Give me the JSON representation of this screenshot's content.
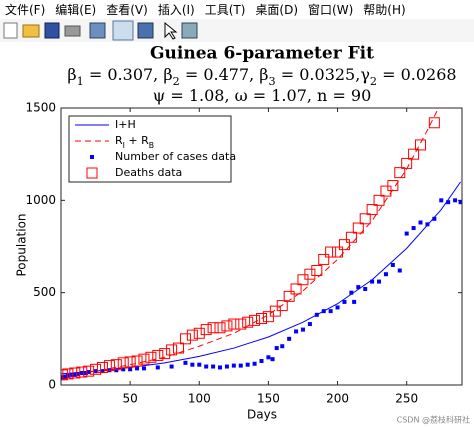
{
  "menu": [
    "文件(F)",
    "编辑(E)",
    "查看(V)",
    "插入(I)",
    "工具(T)",
    "桌面(D)",
    "窗口(W)",
    "帮助(H)"
  ],
  "watermark": "CSDN @荔枝科研社",
  "chart_data": {
    "type": "line",
    "title": "Guinea 6-parameter Fit",
    "subtitle": [
      "β_1 = 0.307, β_2 = 0.477, β_3 = 0.0325,γ_2 = 0.0268",
      "ψ = 1.08, ω = 1.07, n = 90"
    ],
    "x_label": "Days",
    "y_label": "Population",
    "xlim": [
      0,
      290
    ],
    "ylim": [
      0,
      1500
    ],
    "xticks": [
      50,
      100,
      150,
      200,
      250
    ],
    "yticks": [
      0,
      500,
      1000,
      1500
    ],
    "legend": "upper left",
    "series": [
      {
        "name": "I+H",
        "color": "#0000ff",
        "style": "solid",
        "x": [
          0,
          25,
          50,
          75,
          100,
          125,
          150,
          175,
          200,
          225,
          250,
          275,
          289
        ],
        "values": [
          60,
          75,
          95,
          120,
          155,
          200,
          260,
          340,
          440,
          570,
          740,
          950,
          1100
        ]
      },
      {
        "name": "R_I + R_B",
        "color": "#ff0000",
        "style": "dashed",
        "x": [
          0,
          25,
          50,
          75,
          100,
          125,
          150,
          175,
          200,
          225,
          250,
          265,
          273
        ],
        "values": [
          50,
          75,
          110,
          150,
          210,
          280,
          380,
          510,
          680,
          890,
          1170,
          1380,
          1500
        ]
      },
      {
        "name": "Number of cases data",
        "color": "#0000ff",
        "style": "filled-squares",
        "x": [
          1,
          3,
          5,
          8,
          10,
          12,
          15,
          18,
          20,
          25,
          30,
          35,
          40,
          45,
          50,
          55,
          60,
          70,
          80,
          90,
          95,
          100,
          105,
          110,
          115,
          120,
          125,
          130,
          135,
          140,
          145,
          150,
          153,
          156,
          160,
          165,
          170,
          175,
          180,
          185,
          190,
          195,
          200,
          205,
          210,
          212,
          215,
          220,
          225,
          230,
          235,
          240,
          245,
          250,
          255,
          260,
          265,
          270,
          275,
          280,
          285,
          289
        ],
        "values": [
          40,
          45,
          50,
          55,
          55,
          60,
          65,
          65,
          70,
          75,
          75,
          80,
          80,
          85,
          85,
          90,
          90,
          95,
          100,
          120,
          110,
          110,
          100,
          100,
          95,
          100,
          105,
          105,
          110,
          115,
          130,
          150,
          140,
          200,
          210,
          250,
          290,
          300,
          330,
          380,
          400,
          400,
          420,
          450,
          500,
          450,
          530,
          520,
          560,
          560,
          600,
          650,
          620,
          820,
          850,
          880,
          870,
          900,
          1000,
          990,
          1000,
          990
        ]
      },
      {
        "name": "Deaths data",
        "color": "#ff0000",
        "style": "open-squares",
        "x": [
          1,
          5,
          10,
          15,
          20,
          25,
          30,
          35,
          40,
          45,
          50,
          55,
          60,
          65,
          70,
          75,
          80,
          85,
          90,
          95,
          100,
          105,
          110,
          115,
          120,
          125,
          130,
          135,
          140,
          145,
          150,
          155,
          160,
          165,
          170,
          175,
          180,
          185,
          190,
          195,
          200,
          205,
          210,
          215,
          220,
          225,
          230,
          235,
          240,
          245,
          250,
          255,
          260,
          270
        ],
        "values": [
          55,
          60,
          65,
          70,
          75,
          85,
          95,
          105,
          110,
          120,
          125,
          130,
          140,
          150,
          160,
          170,
          190,
          200,
          250,
          270,
          280,
          300,
          310,
          310,
          320,
          330,
          330,
          340,
          350,
          360,
          370,
          400,
          430,
          480,
          520,
          570,
          600,
          620,
          680,
          720,
          720,
          760,
          800,
          850,
          900,
          950,
          1000,
          1050,
          1080,
          1150,
          1200,
          1250,
          1300,
          1420
        ]
      }
    ]
  }
}
